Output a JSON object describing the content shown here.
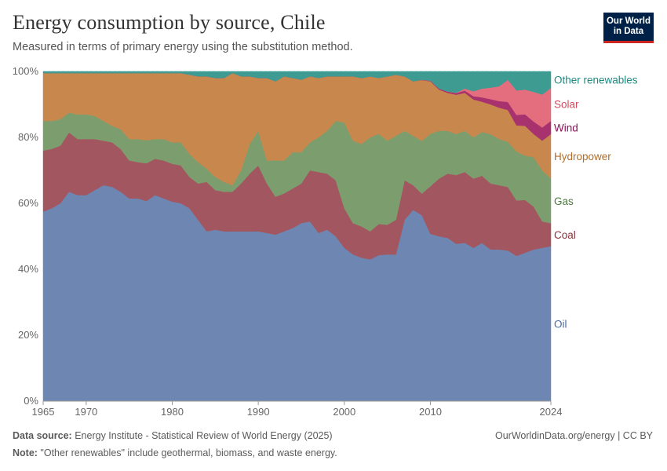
{
  "title": "Energy consumption by source, Chile",
  "subtitle": "Measured in terms of primary energy using the substitution method.",
  "logo": {
    "line1": "Our World",
    "line2": "in Data"
  },
  "footer": {
    "source_label": "Data source:",
    "source_text": " Energy Institute - Statistical Review of World Energy (2025)",
    "note_label": "Note:",
    "note_text": " \"Other renewables\" include geothermal, biomass, and waste energy.",
    "url": "OurWorldinData.org/energy | CC BY"
  },
  "chart_data": {
    "type": "area",
    "stacked": true,
    "ylim": [
      0,
      100
    ],
    "y_ticks": [
      "0%",
      "20%",
      "40%",
      "60%",
      "80%",
      "100%"
    ],
    "x_ticks": [
      "1965",
      "1970",
      "1980",
      "1990",
      "2000",
      "2010",
      "2024"
    ],
    "x": [
      1965,
      1966,
      1967,
      1968,
      1969,
      1970,
      1971,
      1972,
      1973,
      1974,
      1975,
      1976,
      1977,
      1978,
      1979,
      1980,
      1981,
      1982,
      1983,
      1984,
      1985,
      1986,
      1987,
      1988,
      1989,
      1990,
      1991,
      1992,
      1993,
      1994,
      1995,
      1996,
      1997,
      1998,
      1999,
      2000,
      2001,
      2002,
      2003,
      2004,
      2005,
      2006,
      2007,
      2008,
      2009,
      2010,
      2011,
      2012,
      2013,
      2014,
      2015,
      2016,
      2017,
      2018,
      2019,
      2020,
      2021,
      2022,
      2023,
      2024
    ],
    "series": [
      {
        "name": "Oil",
        "color": "#6d87b2",
        "values": [
          57.5,
          58.5,
          60,
          63.5,
          62.5,
          62.5,
          64,
          65.5,
          65,
          63.5,
          61.5,
          61.5,
          61,
          62.5,
          61.5,
          60.5,
          60,
          58.5,
          55,
          51.5,
          52,
          51.5,
          51.5,
          51.5,
          51.5,
          51.5,
          51,
          50.5,
          51.5,
          52.5,
          54,
          54.5,
          51,
          52,
          50,
          46.5,
          44.5,
          43.5,
          43,
          44.5,
          44.5,
          44.5,
          55,
          58,
          56.5,
          51,
          50,
          49.5,
          48,
          48,
          46.5,
          47,
          46,
          46,
          45,
          44.5,
          45,
          46,
          46.5,
          47
        ]
      },
      {
        "name": "Coal",
        "color": "#a2565f",
        "values": [
          18.5,
          18,
          17.5,
          18,
          17,
          17,
          15.5,
          13.5,
          13.5,
          13,
          11.5,
          11,
          11.5,
          11,
          11.5,
          11.5,
          11.5,
          9.5,
          11,
          15,
          12,
          12,
          12,
          14.5,
          17.5,
          20,
          15,
          11.5,
          11.5,
          12,
          12,
          15.5,
          18.5,
          17,
          17,
          12,
          9.5,
          9.5,
          8.5,
          9.5,
          9,
          10.5,
          12,
          7.5,
          6.5,
          14.5,
          17.5,
          19.5,
          21,
          21.5,
          21,
          20,
          20,
          19.5,
          19,
          17,
          16,
          13,
          8,
          7
        ]
      },
      {
        "name": "Gas",
        "color": "#7c9e6e",
        "values": [
          9,
          8.5,
          8,
          6,
          7.5,
          7.5,
          7,
          6,
          5,
          6,
          6.5,
          7,
          7,
          6,
          6.5,
          6.5,
          7,
          7,
          6.5,
          4,
          4,
          3,
          2,
          4,
          9,
          10.5,
          7,
          11,
          10,
          11,
          9.5,
          8.5,
          10.5,
          13,
          18,
          26,
          25,
          25,
          28.5,
          27.5,
          25.5,
          25.5,
          15,
          15,
          16,
          16,
          14.5,
          13,
          12.5,
          12.5,
          12.5,
          13,
          15,
          14,
          13.5,
          15,
          13.5,
          15,
          15.5,
          13.5
        ]
      },
      {
        "name": "Hydropower",
        "color": "#c8874c",
        "values": [
          14.5,
          14.5,
          14,
          12,
          12.5,
          12.5,
          13,
          14.5,
          16,
          17,
          20,
          20,
          20.5,
          20,
          20,
          21,
          21,
          24,
          26,
          28,
          30,
          31.5,
          34,
          28.5,
          20.5,
          16,
          25,
          24,
          25.5,
          22.5,
          22,
          20,
          18,
          16.5,
          13.5,
          14,
          19.5,
          20,
          18.5,
          17,
          19.5,
          18.5,
          16.5,
          16.5,
          18.5,
          16,
          12.5,
          11.5,
          12,
          11.5,
          11.5,
          9,
          9,
          9.5,
          9.5,
          8,
          9,
          7,
          9,
          13.5
        ]
      },
      {
        "name": "Wind",
        "color": "#a8326e",
        "values": [
          0,
          0,
          0,
          0,
          0,
          0,
          0,
          0,
          0,
          0,
          0,
          0,
          0,
          0,
          0,
          0,
          0,
          0,
          0,
          0,
          0,
          0,
          0,
          0,
          0,
          0,
          0,
          0,
          0,
          0,
          0,
          0,
          0,
          0,
          0,
          0,
          0,
          0,
          0,
          0,
          0,
          0,
          0,
          0,
          0.1,
          0.2,
          0.3,
          0.4,
          0.5,
          0.7,
          1,
          1.3,
          1.6,
          2,
          2.4,
          3.2,
          3.5,
          3.8,
          4,
          4
        ]
      },
      {
        "name": "Solar",
        "color": "#e56e7e",
        "values": [
          0,
          0,
          0,
          0,
          0,
          0,
          0,
          0,
          0,
          0,
          0,
          0,
          0,
          0,
          0,
          0,
          0,
          0,
          0,
          0,
          0,
          0,
          0,
          0,
          0,
          0,
          0,
          0,
          0,
          0,
          0,
          0,
          0,
          0,
          0,
          0,
          0,
          0,
          0,
          0,
          0,
          0,
          0,
          0,
          0,
          0,
          0,
          0,
          0.1,
          0.6,
          1.5,
          2.6,
          3.5,
          4.5,
          6.6,
          7.5,
          7.5,
          9,
          10,
          10
        ]
      },
      {
        "name": "Other renewables",
        "color": "#3d9b92",
        "values": [
          0.5,
          0.5,
          0.5,
          0.5,
          0.5,
          0.5,
          0.5,
          0.5,
          0.5,
          0.5,
          0.5,
          0.5,
          0.5,
          0.5,
          0.5,
          0.5,
          0.5,
          1,
          1.5,
          1.5,
          2,
          2,
          0.5,
          1.5,
          1.5,
          2,
          2,
          3,
          1.5,
          2,
          2.5,
          1.5,
          2,
          1.5,
          1.5,
          1.5,
          1.5,
          2,
          1.5,
          2,
          1.5,
          1,
          1.5,
          3,
          2.5,
          2.8,
          5.2,
          6.1,
          6.5,
          5.2,
          6,
          5.1,
          4.9,
          4.5,
          2.5,
          5.8,
          5.5,
          6.2,
          7,
          5
        ]
      }
    ]
  }
}
